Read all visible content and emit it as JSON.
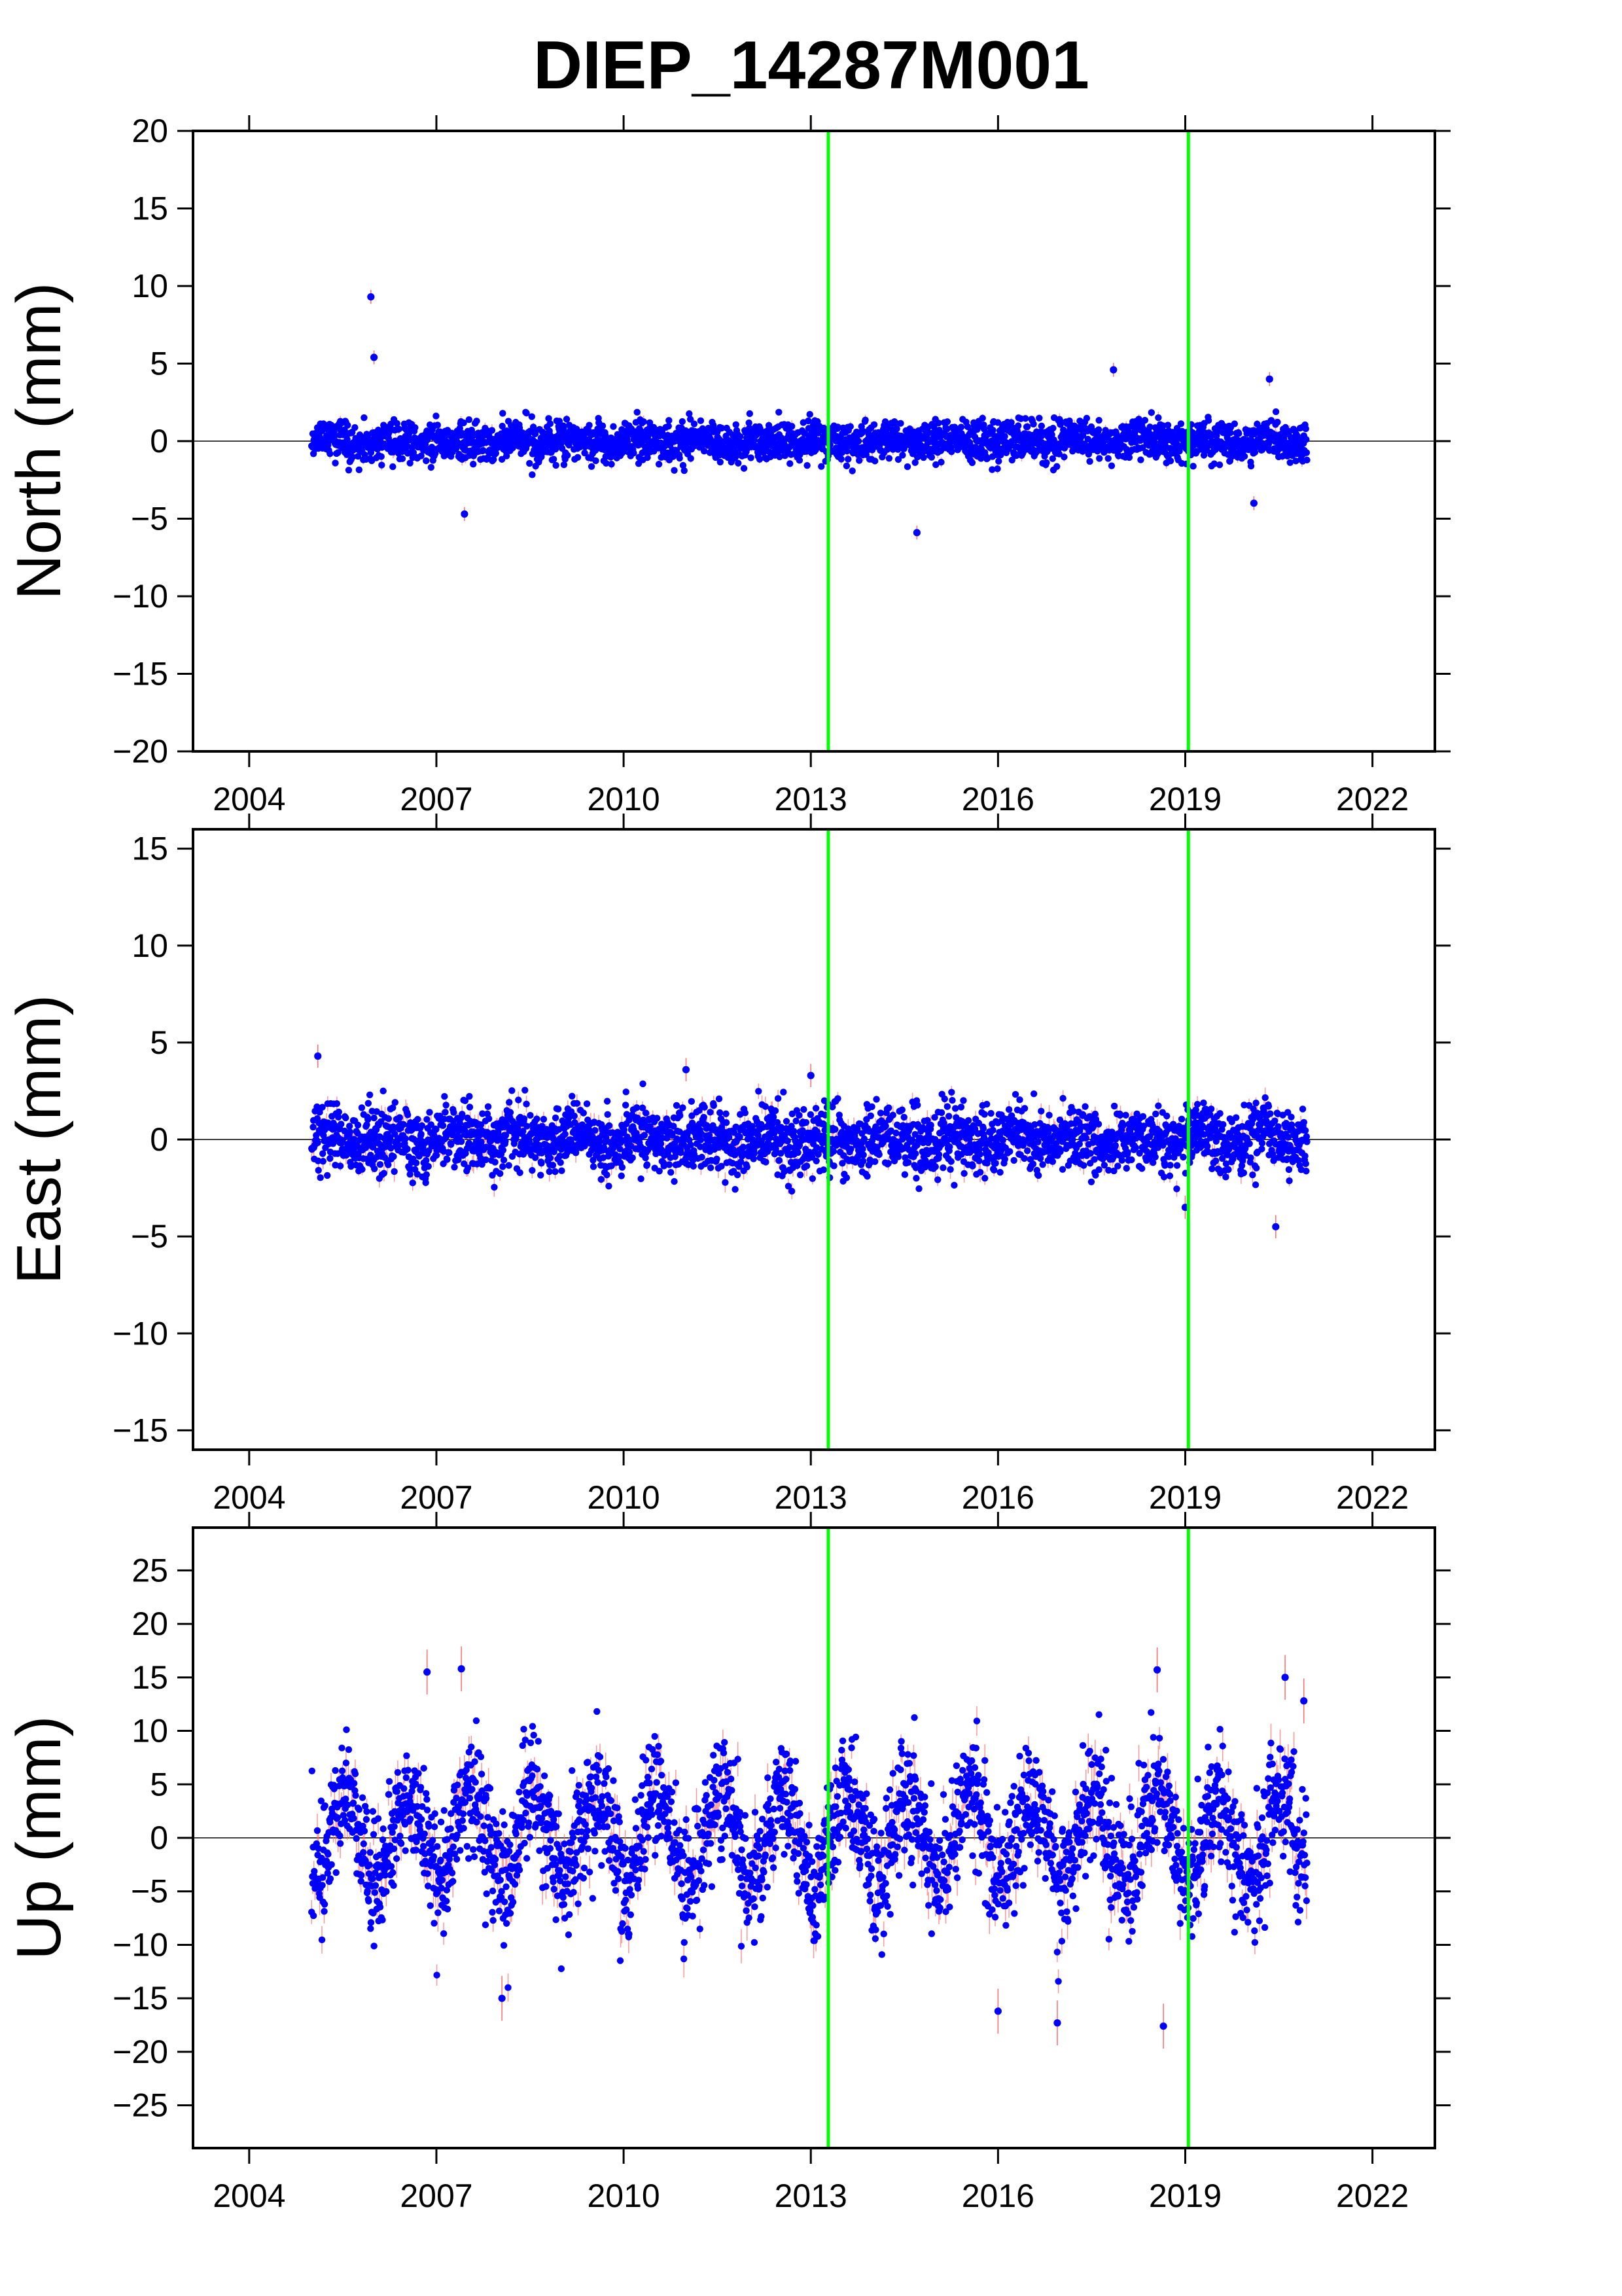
{
  "title": "DIEP_14287M001",
  "colors": {
    "point": "#0000ff",
    "errorbar": "#ff6a6a",
    "event_line": "#00ff00",
    "zero_line": "#000000",
    "frame": "#000000"
  },
  "chart_data": [
    {
      "type": "scatter",
      "panel": "north",
      "ylabel": "North (mm)",
      "xlim": [
        2003.1,
        2023.0
      ],
      "ylim": [
        -20,
        20
      ],
      "x_ticks": [
        2004,
        2007,
        2010,
        2013,
        2016,
        2019,
        2022
      ],
      "x_tick_labels": [
        "2004",
        "2007",
        "2010",
        "2013",
        "2016",
        "2019",
        "2022"
      ],
      "y_ticks": [
        -20,
        -15,
        -10,
        -5,
        0,
        5,
        10,
        15,
        20
      ],
      "y_tick_labels": [
        "−20",
        "−15",
        "−10",
        "−5",
        "0",
        "5",
        "10",
        "15",
        "20"
      ],
      "zero_line": 0,
      "event_lines_x": [
        2013.28,
        2019.05
      ],
      "data_span_x": [
        2005.0,
        2020.95
      ],
      "scatter_half_range_mm": 1.5,
      "outliers": [
        {
          "x": 2005.95,
          "y": 9.3
        },
        {
          "x": 2006.0,
          "y": 5.4
        },
        {
          "x": 2007.45,
          "y": -4.7
        },
        {
          "x": 2014.7,
          "y": -5.9
        },
        {
          "x": 2017.85,
          "y": 4.6
        },
        {
          "x": 2020.35,
          "y": 4.0
        },
        {
          "x": 2020.1,
          "y": -4.0
        }
      ]
    },
    {
      "type": "scatter",
      "panel": "east",
      "ylabel": "East (mm)",
      "xlim": [
        2003.1,
        2023.0
      ],
      "ylim": [
        -16,
        16
      ],
      "x_ticks": [
        2004,
        2007,
        2010,
        2013,
        2016,
        2019,
        2022
      ],
      "x_tick_labels": [
        "2004",
        "2007",
        "2010",
        "2013",
        "2016",
        "2019",
        "2022"
      ],
      "y_ticks": [
        -15,
        -10,
        -5,
        0,
        5,
        10,
        15
      ],
      "y_tick_labels": [
        "−15",
        "−10",
        "−5",
        "0",
        "5",
        "10",
        "15"
      ],
      "zero_line": 0,
      "event_lines_x": [
        2013.28,
        2019.05
      ],
      "data_span_x": [
        2005.0,
        2020.95
      ],
      "scatter_half_range_mm": 2.0,
      "outliers": [
        {
          "x": 2005.1,
          "y": 4.3
        },
        {
          "x": 2011.0,
          "y": 3.6
        },
        {
          "x": 2013.0,
          "y": 3.3
        },
        {
          "x": 2020.45,
          "y": -4.5
        },
        {
          "x": 2019.0,
          "y": -3.5
        }
      ]
    },
    {
      "type": "scatter",
      "panel": "up",
      "ylabel": "Up (mm)",
      "xlim": [
        2003.1,
        2023.0
      ],
      "ylim": [
        -29,
        29
      ],
      "x_ticks": [
        2004,
        2007,
        2010,
        2013,
        2016,
        2019,
        2022
      ],
      "x_tick_labels": [
        "2004",
        "2007",
        "2010",
        "2013",
        "2016",
        "2019",
        "2022"
      ],
      "y_ticks": [
        -25,
        -20,
        -15,
        -10,
        -5,
        0,
        5,
        10,
        15,
        20,
        25
      ],
      "y_tick_labels": [
        "−25",
        "−20",
        "−15",
        "−10",
        "−5",
        "0",
        "5",
        "10",
        "15",
        "20",
        "25"
      ],
      "zero_line": 0,
      "event_lines_x": [
        2013.28,
        2019.05
      ],
      "data_span_x": [
        2005.0,
        2020.95
      ],
      "scatter_half_range_mm": 7.0,
      "outliers": [
        {
          "x": 2006.85,
          "y": 15.5
        },
        {
          "x": 2007.4,
          "y": 15.8
        },
        {
          "x": 2008.05,
          "y": -15.0
        },
        {
          "x": 2016.0,
          "y": -16.2
        },
        {
          "x": 2016.95,
          "y": -17.3
        },
        {
          "x": 2018.65,
          "y": -17.6
        },
        {
          "x": 2018.55,
          "y": 15.7
        },
        {
          "x": 2020.6,
          "y": 15.0
        },
        {
          "x": 2020.9,
          "y": 12.8
        }
      ]
    }
  ]
}
